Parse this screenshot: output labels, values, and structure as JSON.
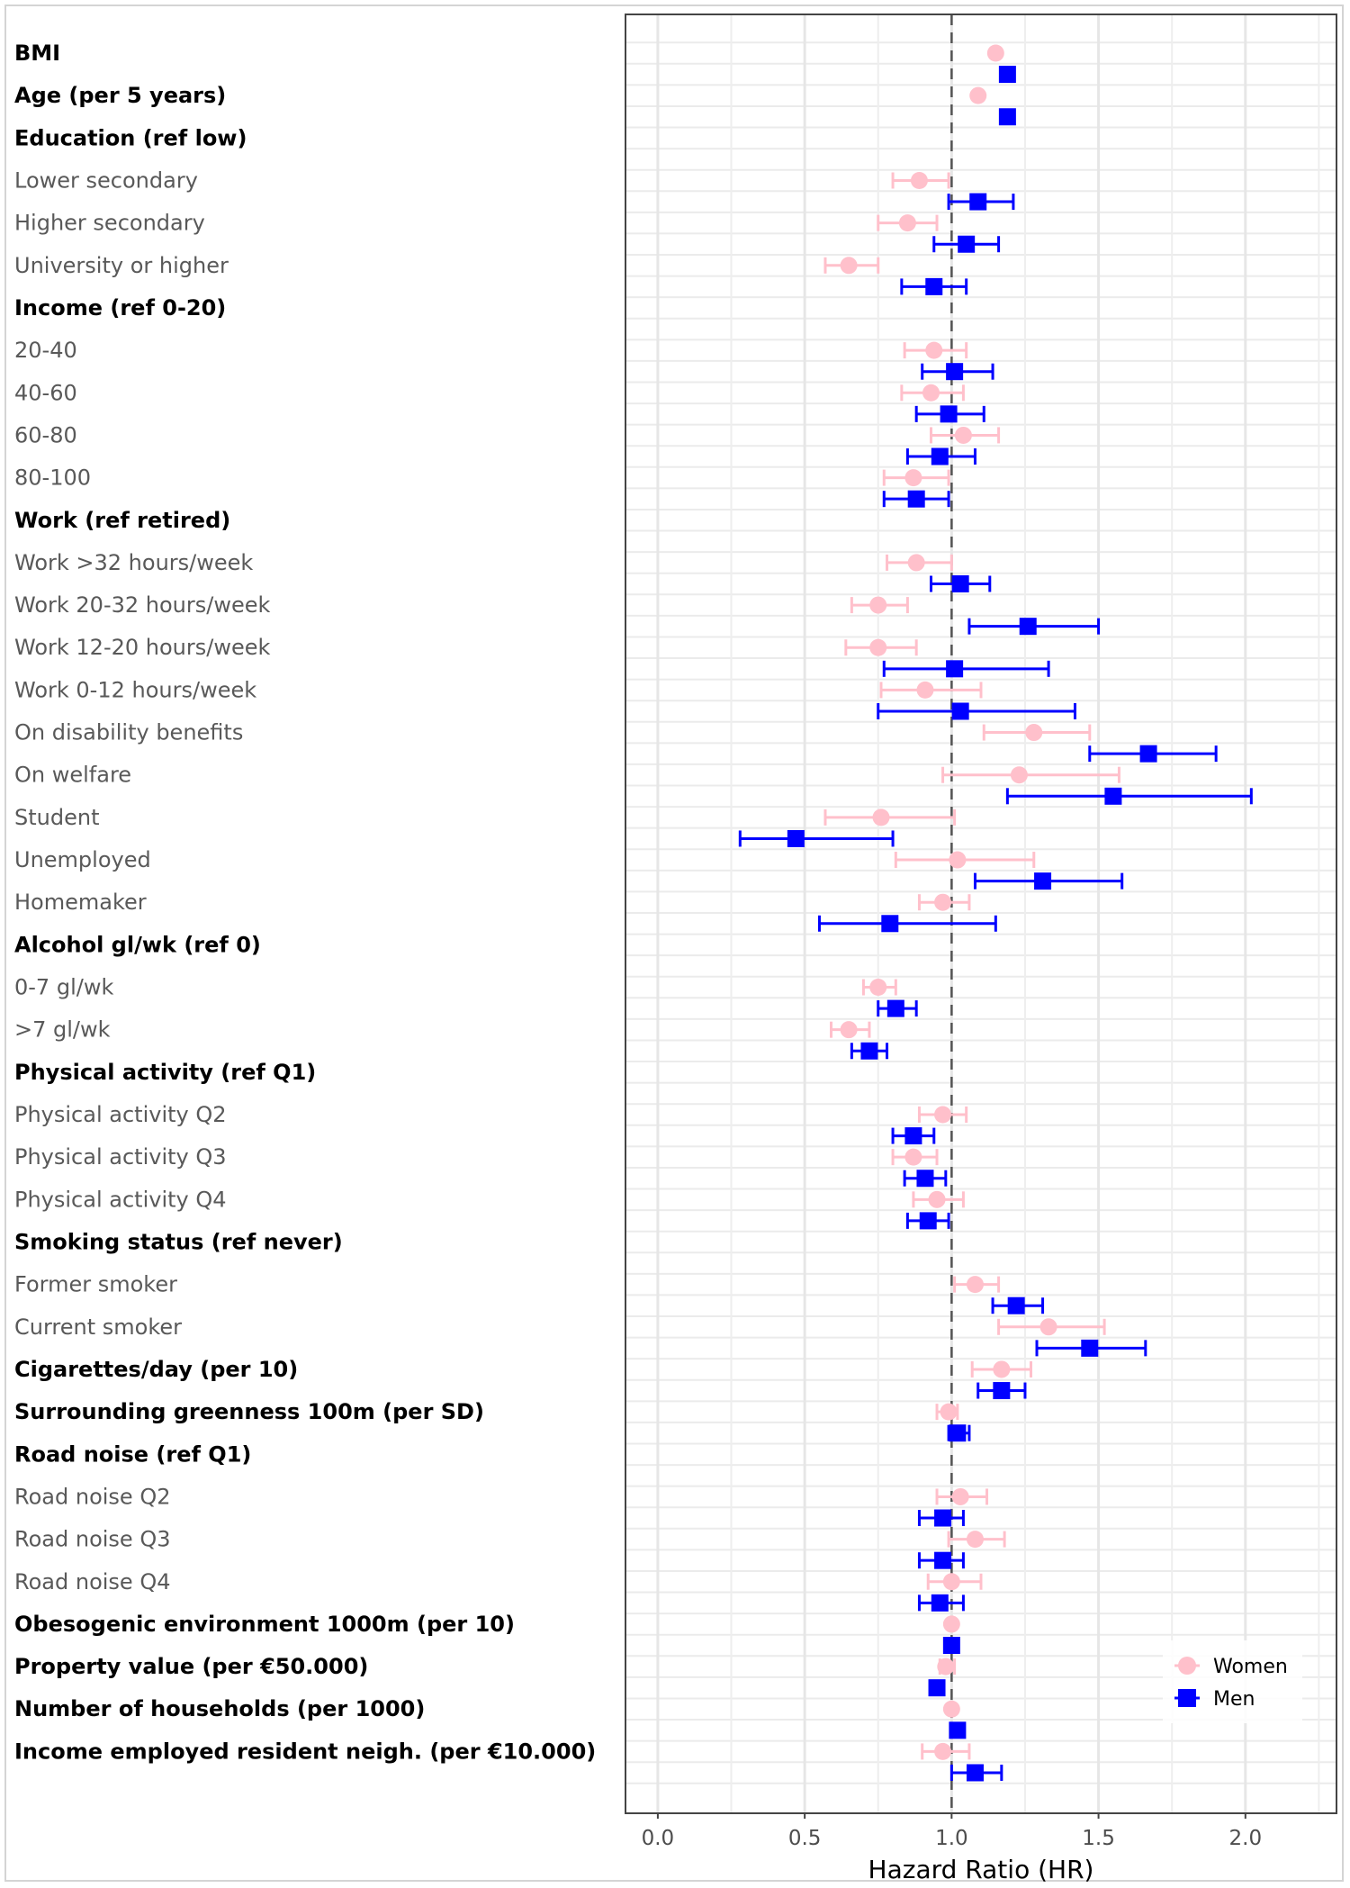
{
  "chart_data": {
    "type": "forest",
    "title": "",
    "xlabel": "Hazard Ratio (HR)",
    "ylabel": "",
    "xlim": [
      -0.11,
      2.31
    ],
    "x_ticks": [
      0.0,
      0.5,
      1.0,
      1.5,
      2.0
    ],
    "x_tick_labels": [
      "0.0",
      "0.5",
      "1.0",
      "1.5",
      "2.0"
    ],
    "reference_line": 1.0,
    "grid": true,
    "legend": {
      "position": "bottom-right",
      "entries": [
        {
          "name": "Women",
          "marker": "circle",
          "color": "#FFC0CB"
        },
        {
          "name": "Men",
          "marker": "square",
          "color": "#0000FF"
        }
      ]
    },
    "rows": [
      {
        "label": "BMI",
        "bold": true,
        "women": {
          "hr": 1.15,
          "lo": null,
          "hi": null
        },
        "men": {
          "hr": 1.19,
          "lo": null,
          "hi": null
        }
      },
      {
        "label": "Age (per 5 years)",
        "bold": true,
        "women": {
          "hr": 1.09,
          "lo": null,
          "hi": null
        },
        "men": {
          "hr": 1.19,
          "lo": null,
          "hi": null
        }
      },
      {
        "label": "Education (ref low)",
        "bold": true,
        "women": null,
        "men": null
      },
      {
        "label": "Lower secondary",
        "bold": false,
        "women": {
          "hr": 0.89,
          "lo": 0.8,
          "hi": 0.99
        },
        "men": {
          "hr": 1.09,
          "lo": 0.99,
          "hi": 1.21
        }
      },
      {
        "label": "Higher secondary",
        "bold": false,
        "women": {
          "hr": 0.85,
          "lo": 0.75,
          "hi": 0.95
        },
        "men": {
          "hr": 1.05,
          "lo": 0.94,
          "hi": 1.16
        }
      },
      {
        "label": "University or higher",
        "bold": false,
        "women": {
          "hr": 0.65,
          "lo": 0.57,
          "hi": 0.75
        },
        "men": {
          "hr": 0.94,
          "lo": 0.83,
          "hi": 1.05
        }
      },
      {
        "label": "Income (ref 0-20)",
        "bold": true,
        "women": null,
        "men": null
      },
      {
        "label": "20-40",
        "bold": false,
        "women": {
          "hr": 0.94,
          "lo": 0.84,
          "hi": 1.05
        },
        "men": {
          "hr": 1.01,
          "lo": 0.9,
          "hi": 1.14
        }
      },
      {
        "label": "40-60",
        "bold": false,
        "women": {
          "hr": 0.93,
          "lo": 0.83,
          "hi": 1.04
        },
        "men": {
          "hr": 0.99,
          "lo": 0.88,
          "hi": 1.11
        }
      },
      {
        "label": "60-80",
        "bold": false,
        "women": {
          "hr": 1.04,
          "lo": 0.93,
          "hi": 1.16
        },
        "men": {
          "hr": 0.96,
          "lo": 0.85,
          "hi": 1.08
        }
      },
      {
        "label": "80-100",
        "bold": false,
        "women": {
          "hr": 0.87,
          "lo": 0.77,
          "hi": 0.99
        },
        "men": {
          "hr": 0.88,
          "lo": 0.77,
          "hi": 0.99
        }
      },
      {
        "label": "Work (ref retired)",
        "bold": true,
        "women": null,
        "men": null
      },
      {
        "label": "Work >32 hours/week",
        "bold": false,
        "women": {
          "hr": 0.88,
          "lo": 0.78,
          "hi": 1.0
        },
        "men": {
          "hr": 1.03,
          "lo": 0.93,
          "hi": 1.13
        }
      },
      {
        "label": "Work 20-32 hours/week",
        "bold": false,
        "women": {
          "hr": 0.75,
          "lo": 0.66,
          "hi": 0.85
        },
        "men": {
          "hr": 1.26,
          "lo": 1.06,
          "hi": 1.5
        }
      },
      {
        "label": "Work 12-20 hours/week",
        "bold": false,
        "women": {
          "hr": 0.75,
          "lo": 0.64,
          "hi": 0.88
        },
        "men": {
          "hr": 1.01,
          "lo": 0.77,
          "hi": 1.33
        }
      },
      {
        "label": "Work 0-12 hours/week",
        "bold": false,
        "women": {
          "hr": 0.91,
          "lo": 0.76,
          "hi": 1.1
        },
        "men": {
          "hr": 1.03,
          "lo": 0.75,
          "hi": 1.42
        }
      },
      {
        "label": "On disability benefits",
        "bold": false,
        "women": {
          "hr": 1.28,
          "lo": 1.11,
          "hi": 1.47
        },
        "men": {
          "hr": 1.67,
          "lo": 1.47,
          "hi": 1.9
        }
      },
      {
        "label": "On welfare",
        "bold": false,
        "women": {
          "hr": 1.23,
          "lo": 0.97,
          "hi": 1.57
        },
        "men": {
          "hr": 1.55,
          "lo": 1.19,
          "hi": 2.02
        }
      },
      {
        "label": "Student",
        "bold": false,
        "women": {
          "hr": 0.76,
          "lo": 0.57,
          "hi": 1.01
        },
        "men": {
          "hr": 0.47,
          "lo": 0.28,
          "hi": 0.8
        }
      },
      {
        "label": "Unemployed",
        "bold": false,
        "women": {
          "hr": 1.02,
          "lo": 0.81,
          "hi": 1.28
        },
        "men": {
          "hr": 1.31,
          "lo": 1.08,
          "hi": 1.58
        }
      },
      {
        "label": "Homemaker",
        "bold": false,
        "women": {
          "hr": 0.97,
          "lo": 0.89,
          "hi": 1.06
        },
        "men": {
          "hr": 0.79,
          "lo": 0.55,
          "hi": 1.15
        }
      },
      {
        "label": "Alcohol gl/wk (ref 0)",
        "bold": true,
        "women": null,
        "men": null
      },
      {
        "label": "0-7 gl/wk",
        "bold": false,
        "women": {
          "hr": 0.75,
          "lo": 0.7,
          "hi": 0.81
        },
        "men": {
          "hr": 0.81,
          "lo": 0.75,
          "hi": 0.88
        }
      },
      {
        "label": ">7 gl/wk",
        "bold": false,
        "women": {
          "hr": 0.65,
          "lo": 0.59,
          "hi": 0.72
        },
        "men": {
          "hr": 0.72,
          "lo": 0.66,
          "hi": 0.78
        }
      },
      {
        "label": "Physical activity (ref Q1)",
        "bold": true,
        "women": null,
        "men": null
      },
      {
        "label": "Physical activity Q2",
        "bold": false,
        "women": {
          "hr": 0.97,
          "lo": 0.89,
          "hi": 1.05
        },
        "men": {
          "hr": 0.87,
          "lo": 0.8,
          "hi": 0.94
        }
      },
      {
        "label": "Physical activity Q3",
        "bold": false,
        "women": {
          "hr": 0.87,
          "lo": 0.8,
          "hi": 0.95
        },
        "men": {
          "hr": 0.91,
          "lo": 0.84,
          "hi": 0.98
        }
      },
      {
        "label": "Physical activity Q4",
        "bold": false,
        "women": {
          "hr": 0.95,
          "lo": 0.87,
          "hi": 1.04
        },
        "men": {
          "hr": 0.92,
          "lo": 0.85,
          "hi": 0.99
        }
      },
      {
        "label": "Smoking status (ref never)",
        "bold": true,
        "women": null,
        "men": null
      },
      {
        "label": "Former smoker",
        "bold": false,
        "women": {
          "hr": 1.08,
          "lo": 1.01,
          "hi": 1.16
        },
        "men": {
          "hr": 1.22,
          "lo": 1.14,
          "hi": 1.31
        }
      },
      {
        "label": "Current smoker",
        "bold": false,
        "women": {
          "hr": 1.33,
          "lo": 1.16,
          "hi": 1.52
        },
        "men": {
          "hr": 1.47,
          "lo": 1.29,
          "hi": 1.66
        }
      },
      {
        "label": "Cigarettes/day (per 10)",
        "bold": true,
        "women": {
          "hr": 1.17,
          "lo": 1.07,
          "hi": 1.27
        },
        "men": {
          "hr": 1.17,
          "lo": 1.09,
          "hi": 1.25
        }
      },
      {
        "label": "Surrounding greenness 100m (per SD)",
        "bold": true,
        "women": {
          "hr": 0.99,
          "lo": 0.95,
          "hi": 1.02
        },
        "men": {
          "hr": 1.02,
          "lo": 0.99,
          "hi": 1.06
        }
      },
      {
        "label": "Road noise (ref Q1)",
        "bold": true,
        "women": null,
        "men": null
      },
      {
        "label": "Road noise Q2",
        "bold": false,
        "women": {
          "hr": 1.03,
          "lo": 0.95,
          "hi": 1.12
        },
        "men": {
          "hr": 0.97,
          "lo": 0.89,
          "hi": 1.04
        }
      },
      {
        "label": "Road noise Q3",
        "bold": false,
        "women": {
          "hr": 1.08,
          "lo": 0.99,
          "hi": 1.18
        },
        "men": {
          "hr": 0.97,
          "lo": 0.89,
          "hi": 1.04
        }
      },
      {
        "label": "Road noise Q4",
        "bold": false,
        "women": {
          "hr": 1.0,
          "lo": 0.92,
          "hi": 1.1
        },
        "men": {
          "hr": 0.96,
          "lo": 0.89,
          "hi": 1.04
        }
      },
      {
        "label": "Obesogenic environment 1000m (per 10)",
        "bold": true,
        "women": {
          "hr": 1.0,
          "lo": null,
          "hi": null
        },
        "men": {
          "hr": 1.0,
          "lo": null,
          "hi": null
        }
      },
      {
        "label": "Property value (per €50.000)",
        "bold": true,
        "women": {
          "hr": 0.98,
          "lo": 0.96,
          "hi": 1.01
        },
        "men": {
          "hr": 0.95,
          "lo": null,
          "hi": null
        }
      },
      {
        "label": "Number of households (per 1000)",
        "bold": true,
        "women": {
          "hr": 1.0,
          "lo": null,
          "hi": null
        },
        "men": {
          "hr": 1.02,
          "lo": null,
          "hi": null
        }
      },
      {
        "label": "Income employed resident neigh. (per €10.000)",
        "bold": true,
        "women": {
          "hr": 0.97,
          "lo": 0.9,
          "hi": 1.06
        },
        "men": {
          "hr": 1.08,
          "lo": 1.0,
          "hi": 1.17
        }
      }
    ]
  }
}
